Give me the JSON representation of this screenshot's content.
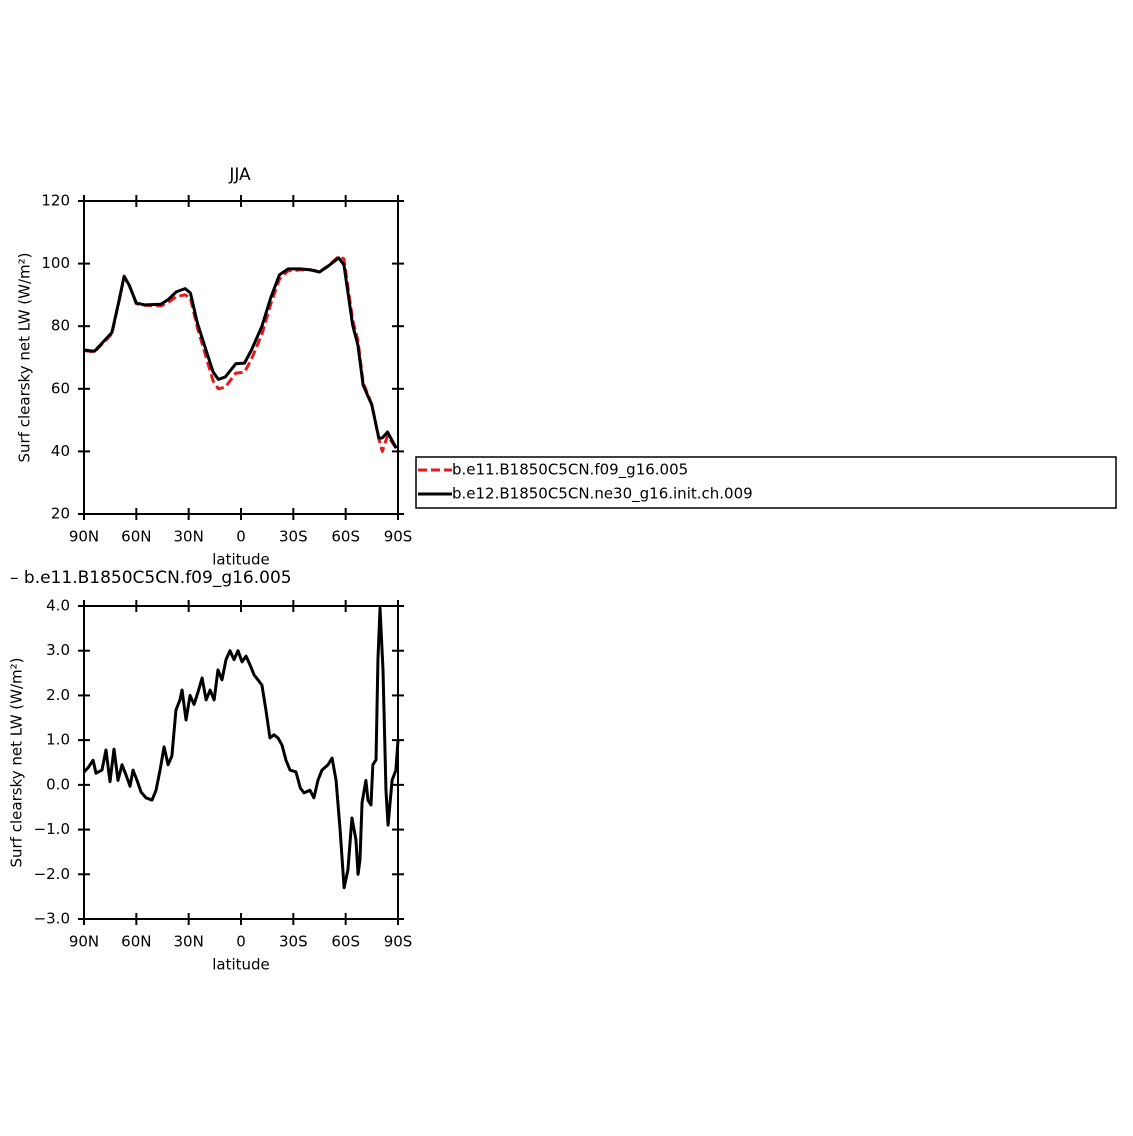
{
  "chart_data": [
    {
      "type": "line",
      "title": "JJA",
      "ylabel": "Surf clearsky net LW (W/m²)",
      "xlabel": "latitude",
      "x": [
        90,
        84,
        78,
        74,
        70,
        67,
        64,
        60,
        55,
        46,
        42,
        37,
        32,
        29,
        25,
        21,
        16,
        13,
        9,
        3,
        -2,
        -6,
        -12,
        -17,
        -22,
        -27,
        -34,
        -40,
        -45,
        -50,
        -56,
        -59,
        -64,
        -67,
        -70,
        -75,
        -79,
        -81,
        -84,
        -89
      ],
      "series": [
        {
          "name": "b.e11.B1850C5CN.f09_g16.005",
          "color": "#e41a1c",
          "line_style": "dashed",
          "values": [
            72.2,
            71.8,
            75.2,
            77.6,
            87.8,
            95.7,
            93,
            87.2,
            86.7,
            86.5,
            87.5,
            89.5,
            90,
            89,
            79.5,
            72,
            62.5,
            60,
            60.5,
            65,
            65.3,
            69.5,
            77.5,
            87,
            95,
            97.7,
            98,
            98,
            97.4,
            99.3,
            102.3,
            101.5,
            82,
            75.5,
            62,
            55,
            44,
            40,
            45,
            41
          ]
        },
        {
          "name": "b.e12.B1850C5CN.ne30_g16.init.ch.009",
          "color": "#000000",
          "line_style": "solid",
          "values": [
            72.4,
            72,
            75.6,
            78,
            88,
            96,
            93,
            87.4,
            86.8,
            87,
            88.4,
            91,
            92,
            90.6,
            81,
            74,
            65.4,
            63,
            63.8,
            68,
            68.2,
            72.4,
            80,
            89,
            96.4,
            98.3,
            98.3,
            98,
            97.3,
            99.2,
            101.8,
            99.6,
            80.4,
            74,
            61.2,
            54.8,
            44.3,
            44.3,
            46.2,
            41
          ]
        }
      ],
      "xlim": [
        90,
        -90
      ],
      "xticks": [
        {
          "value": 90,
          "label": "90N"
        },
        {
          "value": 60,
          "label": "60N"
        },
        {
          "value": 30,
          "label": "30N"
        },
        0,
        {
          "value": -30,
          "label": "30S"
        },
        {
          "value": -60,
          "label": "60S"
        },
        {
          "value": -90,
          "label": "90S"
        }
      ],
      "ylim": [
        20,
        120
      ],
      "yticks": [
        20,
        40,
        60,
        80,
        100,
        120
      ],
      "legend": "right"
    },
    {
      "type": "line",
      "title": "– b.e11.B1850C5CN.f09_g16.005",
      "ylabel": "Surf clearsky net LW (W/m²)",
      "xlabel": "latitude",
      "color": "#000000",
      "x": [
        90.0,
        87.7,
        84.8,
        83.1,
        79.7,
        77.4,
        75.1,
        72.8,
        70.5,
        68.2,
        65.9,
        63.6,
        61.9,
        59.6,
        57.3,
        54.5,
        51.0,
        48.7,
        46.4,
        44.1,
        41.8,
        39.6,
        37.3,
        35.0,
        33.8,
        31.5,
        29.2,
        26.9,
        24.6,
        22.3,
        20.0,
        17.7,
        15.4,
        13.2,
        10.9,
        8.6,
        6.3,
        4.0,
        1.7,
        -0.6,
        -2.9,
        -5.2,
        -7.5,
        -9.7,
        -12.0,
        -14.3,
        -16.6,
        -18.9,
        -21.2,
        -23.5,
        -25.8,
        -28.1,
        -31.5,
        -34.0,
        -36.1,
        -39.5,
        -41.8,
        -44.1,
        -46.4,
        -49.9,
        -52.2,
        -54.5,
        -56.8,
        -59.1,
        -61.3,
        -63.6,
        -65.9,
        -67.1,
        -68.2,
        -69.4,
        -71.6,
        -72.8,
        -74.5,
        -75.6,
        -77.4,
        -78.5,
        -79.7,
        -81.4,
        -83.1,
        -84.3,
        -86.6,
        -88.8,
        -90.0
      ],
      "values": [
        0.29,
        0.38,
        0.55,
        0.26,
        0.33,
        0.78,
        0.07,
        0.8,
        0.1,
        0.45,
        0.22,
        -0.03,
        0.33,
        0.1,
        -0.16,
        -0.29,
        -0.34,
        -0.12,
        0.33,
        0.85,
        0.45,
        0.65,
        1.67,
        1.9,
        2.12,
        1.45,
        2.0,
        1.8,
        2.08,
        2.39,
        1.9,
        2.12,
        1.9,
        2.57,
        2.35,
        2.8,
        3.0,
        2.8,
        3.0,
        2.75,
        2.88,
        2.68,
        2.46,
        2.35,
        2.23,
        1.67,
        1.05,
        1.12,
        1.05,
        0.89,
        0.55,
        0.33,
        0.29,
        -0.07,
        -0.18,
        -0.12,
        -0.29,
        0.1,
        0.33,
        0.45,
        0.6,
        0.1,
        -1.0,
        -2.3,
        -1.9,
        -0.74,
        -1.23,
        -2.0,
        -1.68,
        -0.4,
        0.1,
        -0.34,
        -0.45,
        0.45,
        0.56,
        2.8,
        3.95,
        2.57,
        -0.12,
        -0.9,
        0.1,
        0.33,
        1.0
      ],
      "xlim": [
        90,
        -90
      ],
      "xticks": [
        {
          "value": 90,
          "label": "90N"
        },
        {
          "value": 60,
          "label": "60N"
        },
        {
          "value": 30,
          "label": "30N"
        },
        0,
        {
          "value": -30,
          "label": "30S"
        },
        {
          "value": -60,
          "label": "60S"
        },
        {
          "value": -90,
          "label": "90S"
        }
      ],
      "ylim": [
        -3,
        4
      ],
      "yticks": [
        {
          "value": -3,
          "label": "−3.0"
        },
        {
          "value": -2,
          "label": "−2.0"
        },
        {
          "value": -1,
          "label": "−1.0"
        },
        {
          "value": 0,
          "label": "0.0"
        },
        {
          "value": 1,
          "label": "1.0"
        },
        {
          "value": 2,
          "label": "2.0"
        },
        {
          "value": 3,
          "label": "3.0"
        },
        {
          "value": 4,
          "label": "4.0"
        }
      ]
    }
  ]
}
